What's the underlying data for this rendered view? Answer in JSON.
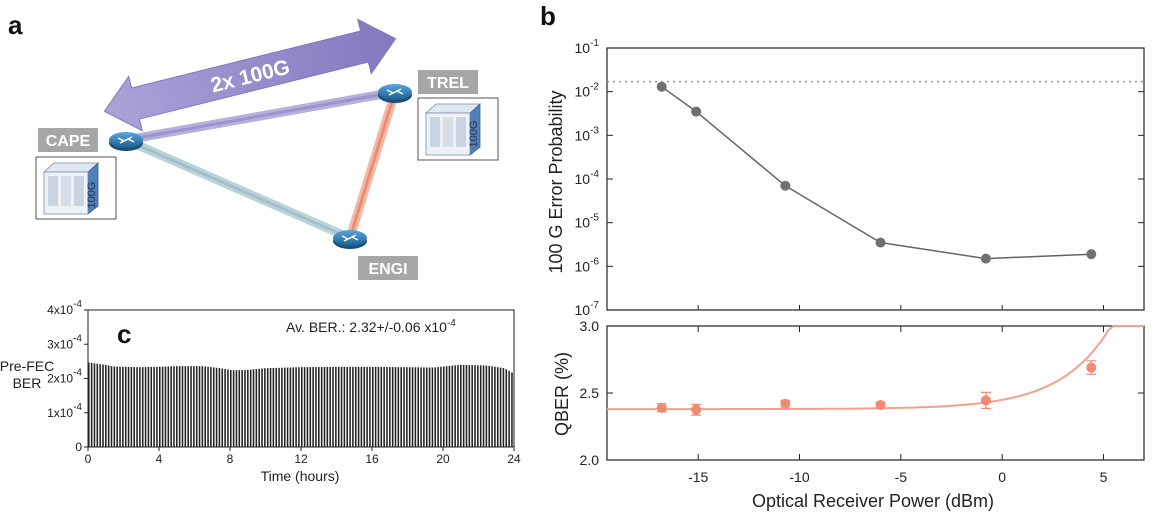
{
  "panels": {
    "a": "a",
    "b": "b",
    "c": "c"
  },
  "network": {
    "link_label": "2x 100G",
    "nodes": [
      {
        "id": "cape",
        "label": "CAPE"
      },
      {
        "id": "trel",
        "label": "TREL"
      },
      {
        "id": "engi",
        "label": "ENGI"
      }
    ],
    "equipment_label": "100G",
    "colors": {
      "arrow": "#8f86c6",
      "link_cape_trel": "#9b93cf",
      "link_cape_engi": "#a9c4cc",
      "link_trel_engi": "#ef9b84",
      "router": "#2f7fb8",
      "label_box": "#a6a6a6"
    }
  },
  "chart_data": [
    {
      "id": "b-top",
      "type": "line",
      "x": [
        -16.8,
        -15.1,
        -10.7,
        -6.0,
        -0.8,
        4.4
      ],
      "y": [
        0.013,
        0.0035,
        7e-05,
        3.5e-06,
        1.5e-06,
        1.9e-06
      ],
      "ylabel": "100 G Error Probability",
      "yscale": "log",
      "ylim": [
        1e-07,
        0.1
      ],
      "yticks": [
        {
          "base": "10",
          "exp": "-1"
        },
        {
          "base": "10",
          "exp": "-2"
        },
        {
          "base": "10",
          "exp": "-3"
        },
        {
          "base": "10",
          "exp": "-4"
        },
        {
          "base": "10",
          "exp": "-5"
        },
        {
          "base": "10",
          "exp": "-6"
        },
        {
          "base": "10",
          "exp": "-7"
        }
      ],
      "xlim": [
        -19.5,
        7
      ],
      "threshold": 0.017,
      "colors": {
        "line": "#666666",
        "marker": "#707070",
        "threshold": "#999999"
      }
    },
    {
      "id": "b-bottom",
      "type": "scatter",
      "x": [
        -16.8,
        -15.1,
        -10.7,
        -6.0,
        -0.8,
        4.4
      ],
      "y": [
        2.39,
        2.375,
        2.42,
        2.41,
        2.445,
        2.69
      ],
      "yerr": [
        0.03,
        0.04,
        0.025,
        0.02,
        0.06,
        0.05
      ],
      "fit": {
        "a": 2.38,
        "b": 0.0215,
        "c": 0.33,
        "x0": -19
      },
      "xlabel": "Optical Receiver Power (dBm)",
      "ylabel": "QBER (%)",
      "ylim": [
        2.0,
        3.0
      ],
      "xlim": [
        -19.5,
        7
      ],
      "xticks": [
        -15,
        -10,
        -5,
        0,
        5
      ],
      "yticks": [
        "3.0",
        "2.5",
        "2.0"
      ],
      "colors": {
        "marker": "#f08a73",
        "fit": "#f4a08c"
      }
    },
    {
      "id": "c",
      "type": "bar",
      "annotation": "Av. BER.: 2.32+/-0.06 x10",
      "annotation_exp": "-4",
      "xlabel": "Time (hours)",
      "ylabel_lines": [
        "Pre-FEC",
        "BER"
      ],
      "xlim": [
        0,
        24
      ],
      "ylim": [
        0,
        4
      ],
      "xticks": [
        "0",
        "4",
        "8",
        "12",
        "16",
        "20",
        "24"
      ],
      "yticks": [
        {
          "base": "4x10",
          "exp": "-4"
        },
        {
          "base": "3x10",
          "exp": "-4"
        },
        {
          "base": "2x10",
          "exp": "-4"
        },
        {
          "base": "1x10",
          "exp": "-4"
        },
        {
          "base": "0",
          "exp": ""
        }
      ],
      "y_profile": [
        [
          0,
          2.47
        ],
        [
          1,
          2.4
        ],
        [
          1.5,
          2.35
        ],
        [
          3,
          2.33
        ],
        [
          4,
          2.34
        ],
        [
          5,
          2.36
        ],
        [
          6.5,
          2.36
        ],
        [
          7.5,
          2.3
        ],
        [
          8.2,
          2.24
        ],
        [
          9,
          2.25
        ],
        [
          10,
          2.3
        ],
        [
          12,
          2.33
        ],
        [
          14,
          2.34
        ],
        [
          16,
          2.34
        ],
        [
          18,
          2.33
        ],
        [
          19.5,
          2.32
        ],
        [
          21,
          2.4
        ],
        [
          22.5,
          2.38
        ],
        [
          23.5,
          2.3
        ],
        [
          24,
          2.15
        ]
      ],
      "bar_count": 150,
      "colors": {
        "bar": "#222222",
        "fill": "#ffffff"
      }
    }
  ]
}
